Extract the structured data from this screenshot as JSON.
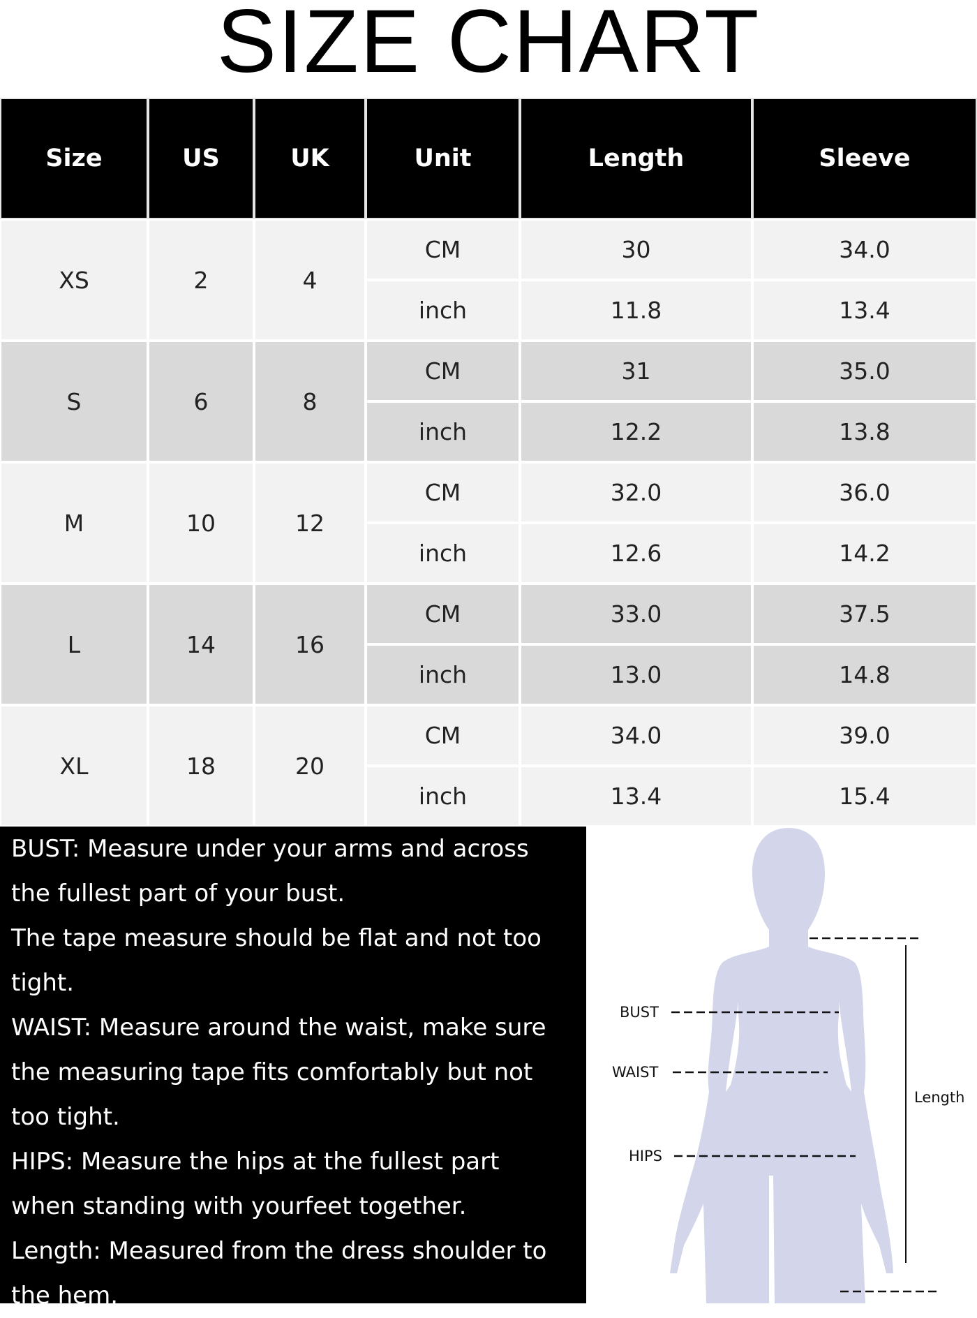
{
  "title": "SIZE CHART",
  "table": {
    "headers": [
      "Size",
      "US",
      "UK",
      "Unit",
      "Length",
      "Sleeve"
    ],
    "rows": [
      {
        "size": "XS",
        "us": "2",
        "uk": "4",
        "units": [
          {
            "unit": "CM",
            "length": "30",
            "sleeve": "34.0"
          },
          {
            "unit": "inch",
            "length": "11.8",
            "sleeve": "13.4"
          }
        ]
      },
      {
        "size": "S",
        "us": "6",
        "uk": "8",
        "units": [
          {
            "unit": "CM",
            "length": "31",
            "sleeve": "35.0"
          },
          {
            "unit": "inch",
            "length": "12.2",
            "sleeve": "13.8"
          }
        ]
      },
      {
        "size": "M",
        "us": "10",
        "uk": "12",
        "units": [
          {
            "unit": "CM",
            "length": "32.0",
            "sleeve": "36.0"
          },
          {
            "unit": "inch",
            "length": "12.6",
            "sleeve": "14.2"
          }
        ]
      },
      {
        "size": "L",
        "us": "14",
        "uk": "16",
        "units": [
          {
            "unit": "CM",
            "length": "33.0",
            "sleeve": "37.5"
          },
          {
            "unit": "inch",
            "length": "13.0",
            "sleeve": "14.8"
          }
        ]
      },
      {
        "size": "XL",
        "us": "18",
        "uk": "20",
        "units": [
          {
            "unit": "CM",
            "length": "34.0",
            "sleeve": "39.0"
          },
          {
            "unit": "inch",
            "length": "13.4",
            "sleeve": "15.4"
          }
        ]
      }
    ]
  },
  "notes": [
    "BUST: Measure under your arms and across",
    "the fullest part of your bust.",
    "The tape measure should be flat and not too",
    "tight.",
    "WAIST: Measure around the waist, make sure",
    "the measuring tape fits comfortably but not",
    "too tight.",
    "HIPS: Measure the hips at the fullest part",
    "when standing with yourfeet together.",
    "Length: Measured from the dress shoulder to",
    "the hem."
  ],
  "figure": {
    "bust": "BUST",
    "waist": "WAIST",
    "hips": "HIPS",
    "length": "Length",
    "silhouette_color": "#d3d6ea"
  },
  "colors": {
    "header_bg": "#000000",
    "row_light": "#f2f2f2",
    "row_dark": "#d9d9d9"
  }
}
